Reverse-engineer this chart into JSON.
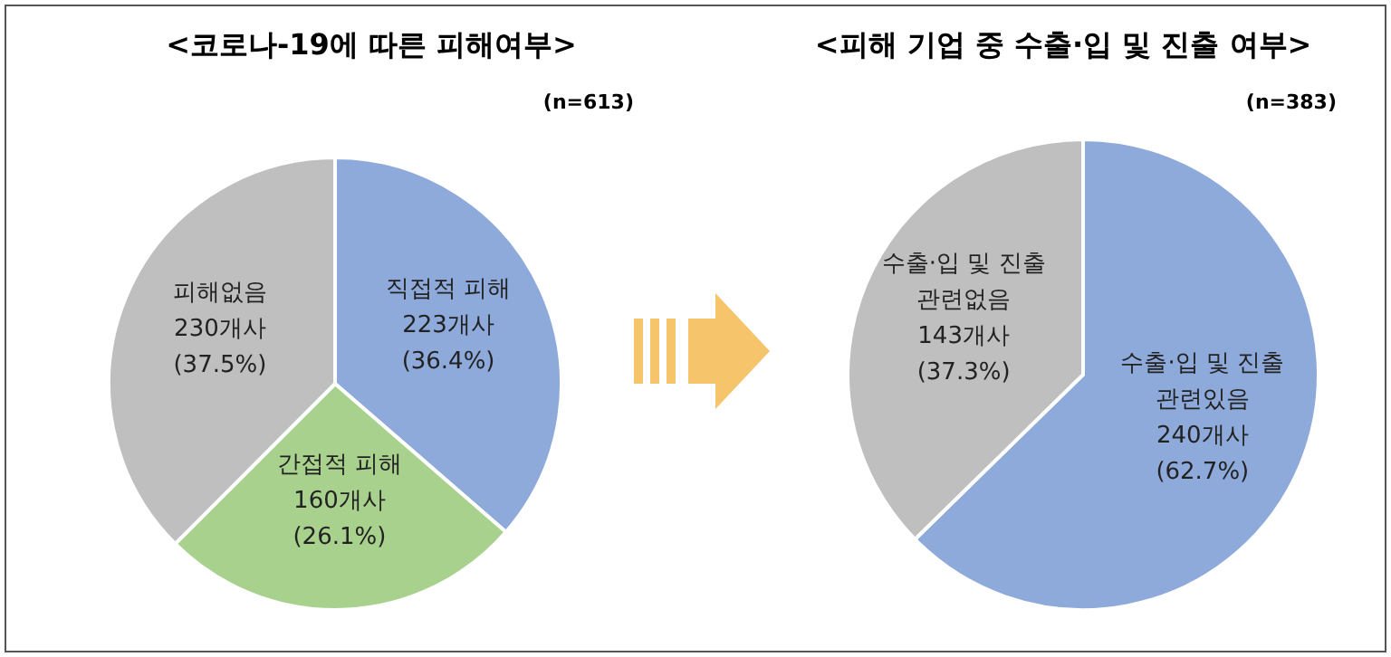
{
  "chart_data": [
    {
      "type": "pie",
      "title": "<코로나-19에 따른 피해여부>",
      "subtitle": "(n=613)",
      "categories": [
        "직접적 피해",
        "간접적 피해",
        "피해없음"
      ],
      "values": [
        223,
        160,
        230
      ],
      "value_labels": [
        "223개사 (36.4%)",
        "160개사 (26.1%)",
        "230개사 (37.5%)"
      ],
      "colors": [
        "#8eaadb",
        "#a9d18e",
        "#bfbfbf"
      ]
    },
    {
      "type": "pie",
      "title": "<피해 기업 중 수출·입 및 진출 여부>",
      "subtitle": "(n=383)",
      "categories": [
        "수출·입 및 진출 관련있음",
        "수출·입 및 진출 관련없음"
      ],
      "values": [
        240,
        143
      ],
      "value_labels": [
        "240개사 (62.7%)",
        "143개사 (37.3%)"
      ],
      "colors": [
        "#8eaadb",
        "#bfbfbf"
      ]
    }
  ]
}
